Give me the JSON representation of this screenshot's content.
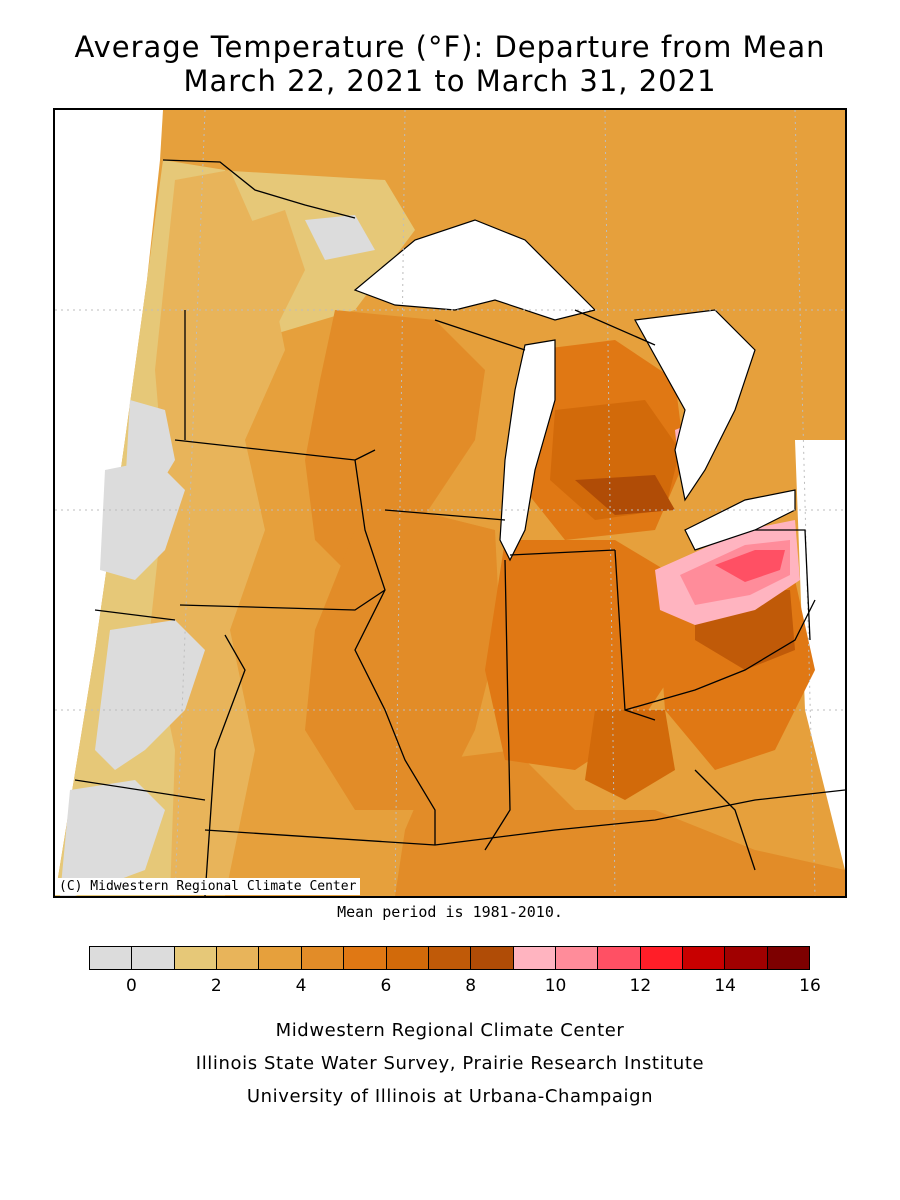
{
  "title": {
    "line1": "Average Temperature (°F): Departure from Mean",
    "line2": "March 22, 2021 to March 31, 2021"
  },
  "map": {
    "copyright": "(C) Midwestern Regional Climate Center",
    "mean_period_note": "Mean period is 1981-2010.",
    "colors": {
      "lake_water": "#ffffff",
      "state_borders": "#000000",
      "graticule": "#bdbdbd"
    }
  },
  "legend": {
    "colors": [
      "#dcdcdc",
      "#dcdcdc",
      "#e6c878",
      "#e8b45a",
      "#e6a03c",
      "#e28c28",
      "#e07814",
      "#d26a0a",
      "#c05a08",
      "#b04c06",
      "#ffb4c0",
      "#ff8c9a",
      "#ff5064",
      "#ff1e28",
      "#c80000",
      "#a00000",
      "#7d0000"
    ],
    "tick_labels": [
      {
        "value": 0,
        "label": "0"
      },
      {
        "value": 2,
        "label": "2"
      },
      {
        "value": 4,
        "label": "4"
      },
      {
        "value": 6,
        "label": "6"
      },
      {
        "value": 8,
        "label": "8"
      },
      {
        "value": 10,
        "label": "10"
      },
      {
        "value": 12,
        "label": "12"
      },
      {
        "value": 14,
        "label": "14"
      },
      {
        "value": 16,
        "label": "16"
      }
    ],
    "min": -1,
    "max": 16
  },
  "footer": {
    "line1": "Midwestern Regional Climate Center",
    "line2": "Illinois State Water Survey, Prairie Research Institute",
    "line3": "University of Illinois at Urbana-Champaign"
  }
}
